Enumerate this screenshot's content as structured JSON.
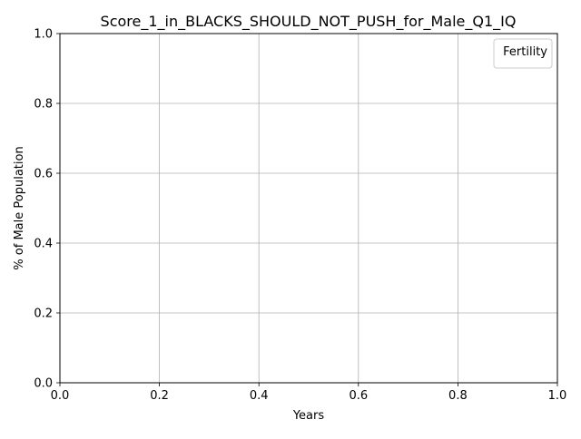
{
  "chart_data": {
    "type": "line",
    "title": "Score_1_in_BLACKS_SHOULD_NOT_PUSH_for_Male_Q1_IQ",
    "xlabel": "Years",
    "ylabel": "% of Male Population",
    "xlim": [
      0.0,
      1.0
    ],
    "ylim": [
      0.0,
      1.0
    ],
    "xticks": [
      "0.0",
      "0.2",
      "0.4",
      "0.6",
      "0.8",
      "1.0"
    ],
    "yticks": [
      "0.0",
      "0.2",
      "0.4",
      "0.6",
      "0.8",
      "1.0"
    ],
    "grid": true,
    "legend": {
      "title": "Fertility",
      "placement": "top-right",
      "entries": []
    },
    "series": []
  }
}
